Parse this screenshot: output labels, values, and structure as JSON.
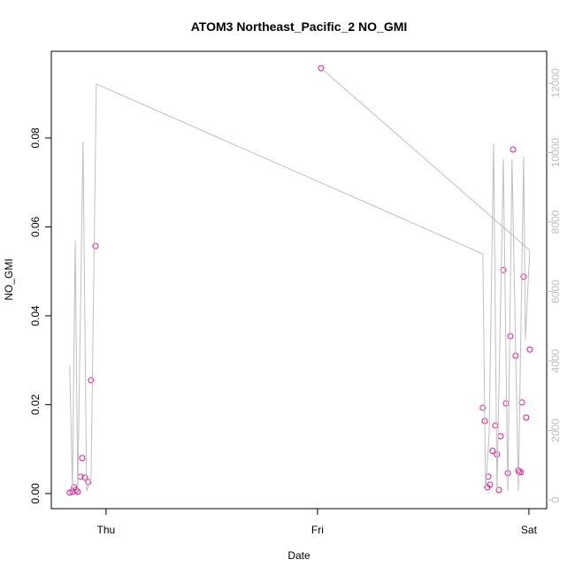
{
  "chart_data": {
    "type": "scatter",
    "title": "ATOM3 Northeast_Pacific_2 NO_GMI",
    "xlabel": "Date",
    "ylabel": "NO_GMI",
    "xlim": [
      -0.259,
      2.084
    ],
    "xticks": [
      {
        "value": 0,
        "label": "Thu"
      },
      {
        "value": 1,
        "label": "Fri"
      },
      {
        "value": 2,
        "label": "Sat"
      }
    ],
    "ylim": [
      -0.0034,
      0.0995
    ],
    "yticks": [
      {
        "value": 0,
        "label": "0.00"
      },
      0.02,
      0.04,
      0.06,
      0.08
    ],
    "y2lim": [
      -255,
      12917
    ],
    "y2ticks": [
      0,
      2000,
      4000,
      6000,
      8000,
      10000,
      12000
    ],
    "y2color": "#bebebe",
    "series": [
      {
        "type": "scatter",
        "color": "#e6188f",
        "x": [
          -0.172,
          -0.159,
          -0.151,
          -0.142,
          -0.134,
          -0.121,
          -0.113,
          -0.1,
          -0.084,
          -0.071,
          -0.05,
          1.017,
          1.782,
          1.791,
          1.803,
          1.808,
          1.816,
          1.828,
          1.841,
          1.849,
          1.858,
          1.866,
          1.879,
          1.891,
          1.9,
          1.912,
          1.925,
          1.937,
          1.95,
          1.954,
          1.962,
          1.967,
          1.975,
          1.987,
          2.004
        ],
        "values": [
          0.0002,
          0.0004,
          0.0014,
          0.0008,
          0.0004,
          0.0038,
          0.008,
          0.0036,
          0.0026,
          0.0255,
          0.0557,
          0.0957,
          0.0193,
          0.0163,
          0.0014,
          0.0038,
          0.002,
          0.0096,
          0.0153,
          0.0088,
          0.0008,
          0.0129,
          0.0503,
          0.0203,
          0.0046,
          0.0354,
          0.0774,
          0.031,
          0.0052,
          0.0048,
          0.0048,
          0.0205,
          0.0488,
          0.0171,
          0.0324
        ]
      },
      {
        "type": "line",
        "axis": "y2",
        "color": "#bebebe",
        "x": [
          -0.172,
          -0.159,
          -0.146,
          -0.134,
          -0.109,
          -0.092,
          -0.071,
          -0.046,
          1.782,
          1.795,
          1.812,
          1.833,
          1.849,
          1.879,
          1.9,
          1.92,
          1.95,
          1.975,
          1.983,
          2.004,
          null,
          1.017,
          2.004
        ],
        "values": [
          3847,
          255,
          7465,
          255,
          10318,
          255,
          586,
          11975,
          7083,
          255,
          1911,
          10268,
          255,
          9809,
          255,
          9809,
          255,
          9885,
          4611,
          7185,
          null,
          12433,
          7185
        ]
      }
    ]
  }
}
